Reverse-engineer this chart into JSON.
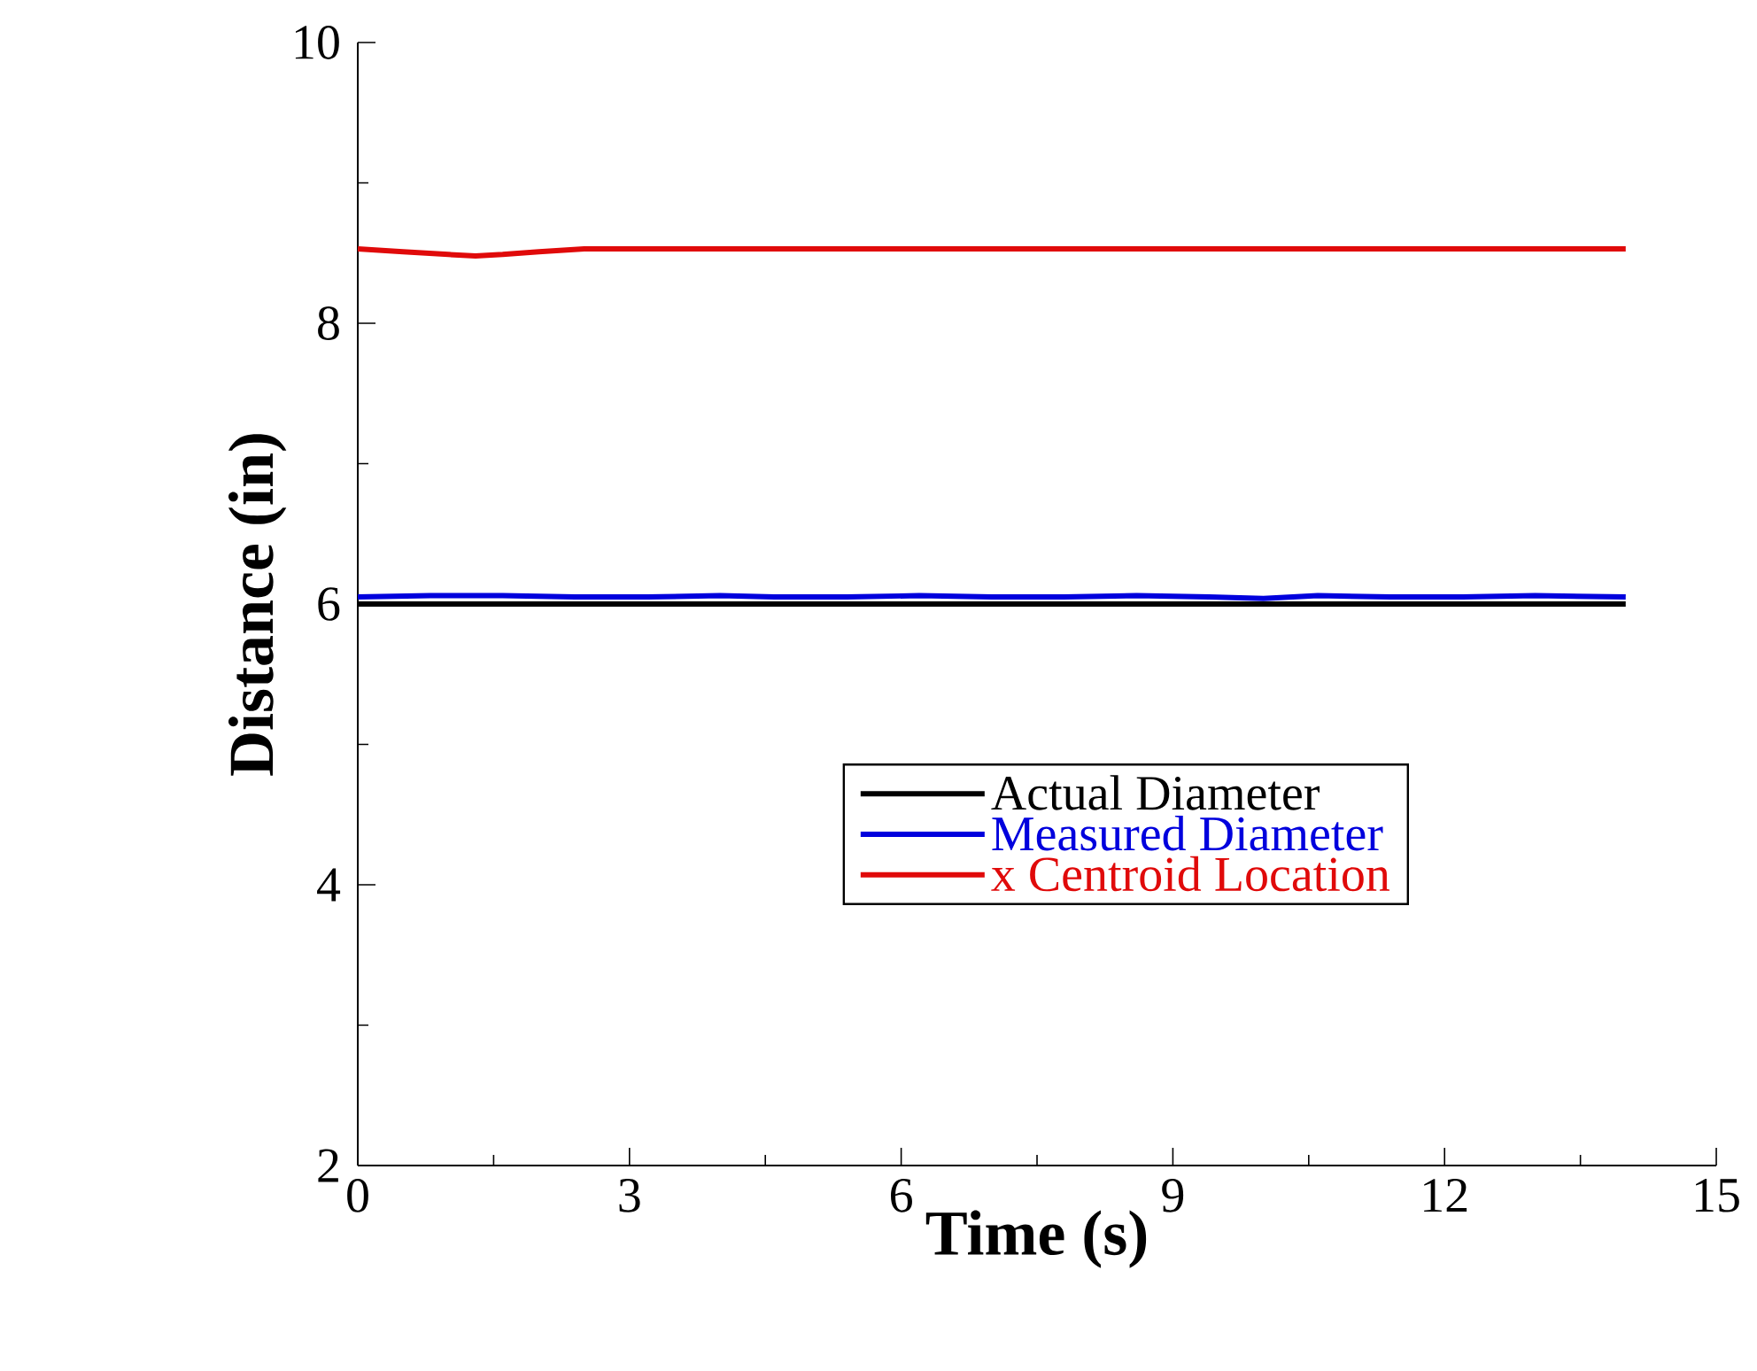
{
  "chart_data": {
    "type": "line",
    "xlabel": "Time (s)",
    "ylabel": "Distance (in)",
    "xlim": [
      0,
      15
    ],
    "ylim": [
      2,
      10
    ],
    "xticks": [
      0,
      3,
      6,
      9,
      12,
      15
    ],
    "yticks": [
      2,
      4,
      6,
      8,
      10
    ],
    "grid": false,
    "legend": "bottom right",
    "marker": "none",
    "line_style": "solid",
    "series": [
      {
        "name": "Actual Diameter",
        "color": "#000000",
        "x": [
          0,
          14
        ],
        "values": [
          6.0,
          6.0
        ]
      },
      {
        "name": "Measured Diameter",
        "color": "#0000dd",
        "x": [
          0,
          0.8,
          1.6,
          2.4,
          3.2,
          4.0,
          4.6,
          5.4,
          6.2,
          7.0,
          7.8,
          8.6,
          9.4,
          10.0,
          10.6,
          11.4,
          12.2,
          13.0,
          14.0
        ],
        "values": [
          6.05,
          6.06,
          6.06,
          6.05,
          6.05,
          6.06,
          6.05,
          6.05,
          6.06,
          6.05,
          6.05,
          6.06,
          6.05,
          6.04,
          6.06,
          6.05,
          6.05,
          6.06,
          6.05
        ]
      },
      {
        "name": "x Centroid Location",
        "color": "#e00a0a",
        "x": [
          0,
          0.5,
          1.0,
          1.3,
          1.6,
          2.0,
          2.5,
          14.0
        ],
        "values": [
          8.53,
          8.51,
          8.49,
          8.48,
          8.49,
          8.51,
          8.53,
          8.53
        ]
      }
    ]
  }
}
